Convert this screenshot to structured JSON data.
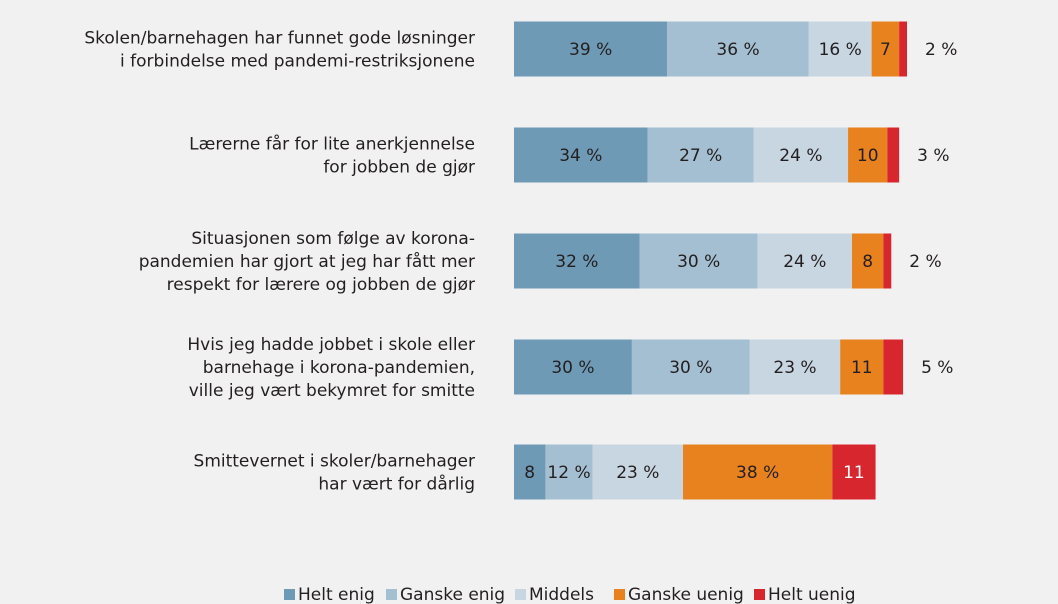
{
  "chart_data": {
    "type": "bar",
    "orientation": "horizontal",
    "stacked": true,
    "title": "",
    "xlabel": "",
    "ylabel": "",
    "xlim": [
      0,
      100
    ],
    "grid": false,
    "legend_position": "bottom",
    "categories": [
      [
        "Skolen/barnehagen har funnet gode løsninger",
        "i forbindelse med pandemi-restriksjonene"
      ],
      [
        "Lærerne får for lite anerkjennelse",
        "for jobben de gjør"
      ],
      [
        "Situasjonen som følge av korona-",
        "pandemien har gjort at jeg har fått mer",
        "respekt for lærere og jobben de gjør"
      ],
      [
        "Hvis jeg hadde jobbet i skole eller",
        "barnehage i korona-pandemien,",
        "ville jeg vært bekymret for smitte"
      ],
      [
        "Smittevernet i skoler/barnehager",
        "har vært for dårlig"
      ]
    ],
    "series": [
      {
        "name": "Helt enig",
        "color": "#6f9ab6",
        "values": [
          39,
          34,
          32,
          30,
          8
        ],
        "labels": [
          "39 %",
          "34 %",
          "32 %",
          "30 %",
          "8"
        ]
      },
      {
        "name": "Ganske enig",
        "color": "#a4bfd2",
        "values": [
          36,
          27,
          30,
          30,
          12
        ],
        "labels": [
          "36 %",
          "27 %",
          "30 %",
          "30 %",
          "12 %"
        ]
      },
      {
        "name": "Middels",
        "color": "#c8d6e2",
        "values": [
          16,
          24,
          24,
          23,
          23
        ],
        "labels": [
          "16 %",
          "24 %",
          "24 %",
          "23 %",
          "23 %"
        ]
      },
      {
        "name": "Ganske uenig",
        "color": "#e8821e",
        "values": [
          7,
          10,
          8,
          11,
          38
        ],
        "labels": [
          "7",
          "10",
          "8",
          "11",
          "38 %"
        ]
      },
      {
        "name": "Helt uenig",
        "color": "#d7262e",
        "values": [
          2,
          3,
          2,
          5,
          11
        ],
        "labels": [
          "2 %",
          "3 %",
          "2 %",
          "5 %",
          "11"
        ]
      }
    ]
  }
}
